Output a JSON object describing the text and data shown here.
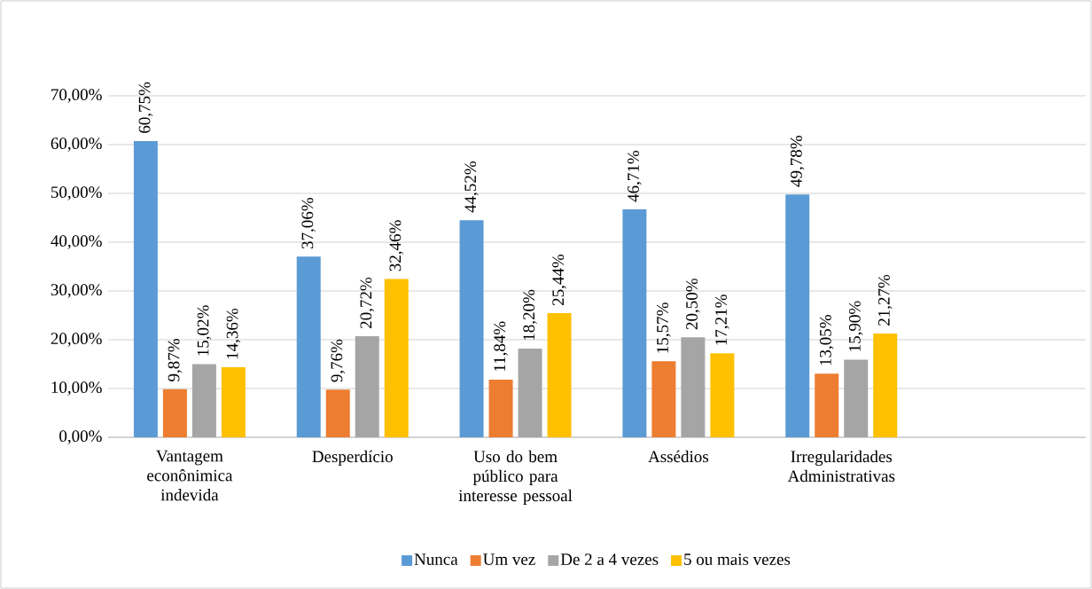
{
  "chart_data": {
    "type": "bar",
    "categories": [
      "Vantagem econônimica indevida",
      "Desperdício",
      "Uso do bem público para interesse pessoal",
      "Assédios",
      "Irregularidades Administrativas",
      null
    ],
    "series": [
      {
        "name": "Nunca",
        "color": "#5b9bd5",
        "values": [
          60.75,
          37.06,
          44.52,
          46.71,
          49.78,
          null
        ],
        "value_labels": [
          "60,75%",
          "37,06%",
          "44,52%",
          "46,71%",
          "49,78%",
          null
        ]
      },
      {
        "name": "Um vez",
        "color": "#ed7d31",
        "values": [
          9.87,
          9.76,
          11.84,
          15.57,
          13.05,
          null
        ],
        "value_labels": [
          "9,87%",
          "9,76%",
          "11,84%",
          "15,57%",
          "13,05%",
          null
        ]
      },
      {
        "name": "De 2 a 4 vezes",
        "color": "#a5a5a5",
        "values": [
          15.02,
          20.72,
          18.2,
          20.5,
          15.9,
          null
        ],
        "value_labels": [
          "15,02%",
          "20,72%",
          "18,20%",
          "20,50%",
          "15,90%",
          null
        ]
      },
      {
        "name": "5 ou mais vezes",
        "color": "#ffc000",
        "values": [
          14.36,
          32.46,
          25.44,
          17.21,
          21.27,
          null
        ],
        "value_labels": [
          "14,36%",
          "32,46%",
          "25,44%",
          "17,21%",
          "21,27%",
          null
        ]
      }
    ],
    "ylim": [
      0,
      70
    ],
    "yticks": [
      {
        "value": 0,
        "label": "0,00%"
      },
      {
        "value": 10,
        "label": "10,00%"
      },
      {
        "value": 20,
        "label": "20,00%"
      },
      {
        "value": 30,
        "label": "30,00%"
      },
      {
        "value": 40,
        "label": "40,00%"
      },
      {
        "value": 50,
        "label": "50,00%"
      },
      {
        "value": 60,
        "label": "60,00%"
      },
      {
        "value": 70,
        "label": "70,00%"
      }
    ],
    "grid": "y",
    "legend": "bottom"
  }
}
